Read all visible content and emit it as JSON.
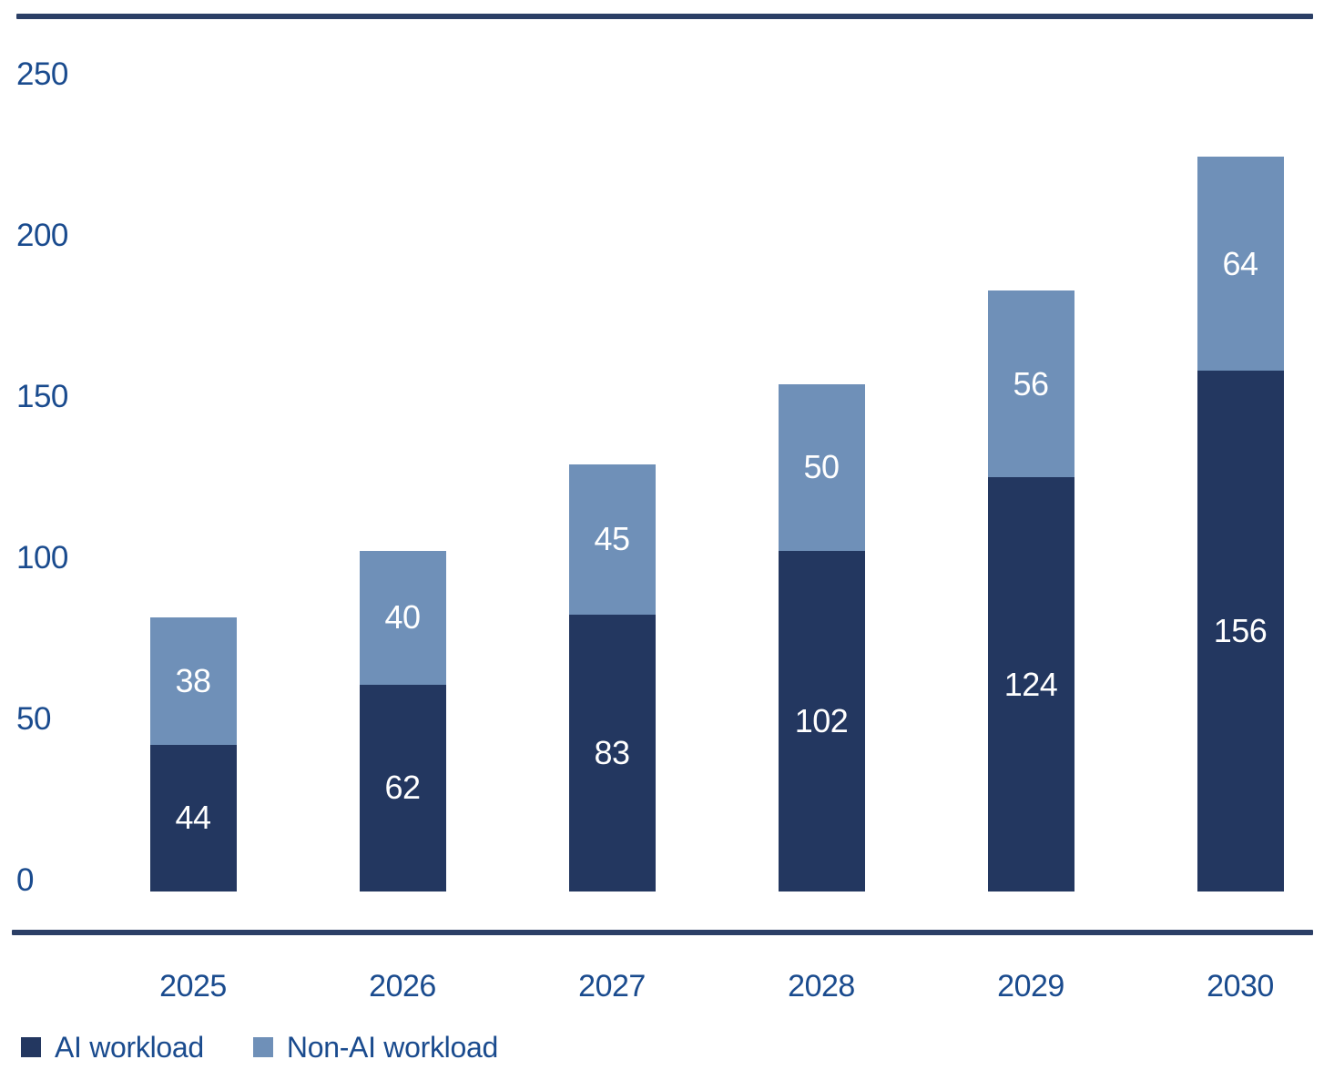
{
  "chart_data": {
    "type": "bar",
    "stacked": true,
    "title": "",
    "xlabel": "",
    "ylabel": "",
    "categories": [
      "2025",
      "2026",
      "2027",
      "2028",
      "2029",
      "2030"
    ],
    "series": [
      {
        "name": "AI workload",
        "color": "#233760",
        "values": [
          44,
          62,
          83,
          102,
          124,
          156
        ]
      },
      {
        "name": "Non-AI workload",
        "color": "#6f90b8",
        "values": [
          38,
          40,
          45,
          50,
          56,
          64
        ]
      }
    ],
    "totals": [
      82,
      102,
      128,
      152,
      180,
      220
    ],
    "yticks": [
      0,
      50,
      100,
      150,
      200,
      250
    ],
    "ylim": [
      0,
      250
    ],
    "grid": false,
    "value_labels": true,
    "legend_position": "bottom-left"
  },
  "colors": {
    "background": "#ffffff",
    "axis_text": "#1a4b8e",
    "value_label_text": "#ffffff",
    "rule": "#2b3f66"
  }
}
